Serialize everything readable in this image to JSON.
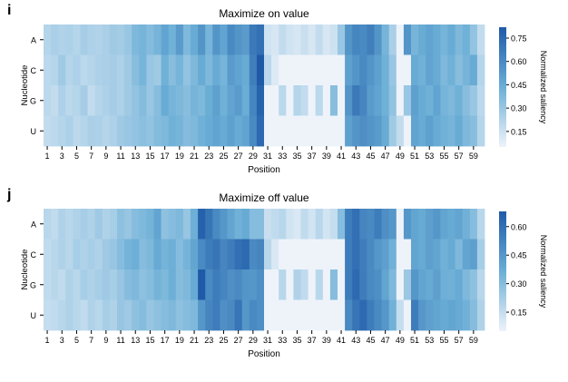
{
  "colors": {
    "low": "#eef3fa",
    "high": "#1f5aa8"
  },
  "chart_data": [
    {
      "panel": "i",
      "type": "heatmap",
      "title": "Maximize on value",
      "xlabel": "Position",
      "ylabel": "Nucleotide",
      "rows": [
        "A",
        "C",
        "G",
        "U"
      ],
      "x_tick_labels": [
        "1",
        "3",
        "5",
        "7",
        "9",
        "11",
        "13",
        "15",
        "17",
        "19",
        "21",
        "23",
        "25",
        "27",
        "29",
        "31",
        "33",
        "35",
        "37",
        "39",
        "41",
        "43",
        "45",
        "47",
        "49",
        "51",
        "53",
        "55",
        "57",
        "59"
      ],
      "colorbar": {
        "label": "Normalized saliency",
        "ticks": [
          "0.15",
          "0.30",
          "0.45",
          "0.60",
          "0.75"
        ],
        "tick_values": [
          0.15,
          0.3,
          0.45,
          0.6,
          0.75
        ],
        "range": [
          0.05,
          0.82
        ]
      },
      "values": [
        [
          0.22,
          0.25,
          0.23,
          0.24,
          0.22,
          0.26,
          0.24,
          0.23,
          0.25,
          0.28,
          0.27,
          0.3,
          0.38,
          0.4,
          0.36,
          0.4,
          0.48,
          0.42,
          0.52,
          0.38,
          0.45,
          0.55,
          0.4,
          0.55,
          0.48,
          0.6,
          0.55,
          0.52,
          0.68,
          0.72,
          0.14,
          0.12,
          0.18,
          0.14,
          0.12,
          0.16,
          0.12,
          0.18,
          0.12,
          0.15,
          0.3,
          0.55,
          0.62,
          0.6,
          0.65,
          0.55,
          0.4,
          0.25,
          0.02,
          0.55,
          0.4,
          0.45,
          0.48,
          0.45,
          0.4,
          0.45,
          0.38,
          0.42,
          0.32,
          0.18
        ],
        [
          0.2,
          0.22,
          0.28,
          0.22,
          0.24,
          0.2,
          0.22,
          0.24,
          0.25,
          0.26,
          0.24,
          0.28,
          0.35,
          0.4,
          0.3,
          0.28,
          0.42,
          0.35,
          0.4,
          0.32,
          0.38,
          0.45,
          0.38,
          0.45,
          0.4,
          0.52,
          0.48,
          0.45,
          0.65,
          0.82,
          0.2,
          0.1,
          0.02,
          0.02,
          0.02,
          0.02,
          0.02,
          0.02,
          0.02,
          0.02,
          0.02,
          0.5,
          0.55,
          0.6,
          0.55,
          0.5,
          0.42,
          0.3,
          0.02,
          0.02,
          0.45,
          0.42,
          0.48,
          0.45,
          0.38,
          0.42,
          0.35,
          0.4,
          0.45,
          0.22
        ],
        [
          0.2,
          0.18,
          0.24,
          0.2,
          0.22,
          0.26,
          0.18,
          0.22,
          0.24,
          0.26,
          0.24,
          0.28,
          0.32,
          0.36,
          0.3,
          0.35,
          0.45,
          0.4,
          0.38,
          0.35,
          0.4,
          0.38,
          0.44,
          0.5,
          0.42,
          0.48,
          0.52,
          0.44,
          0.62,
          0.78,
          0.02,
          0.02,
          0.2,
          0.02,
          0.22,
          0.18,
          0.02,
          0.2,
          0.02,
          0.35,
          0.02,
          0.55,
          0.68,
          0.62,
          0.52,
          0.48,
          0.42,
          0.32,
          0.02,
          0.3,
          0.5,
          0.45,
          0.42,
          0.48,
          0.4,
          0.38,
          0.42,
          0.35,
          0.3,
          0.2
        ],
        [
          0.18,
          0.2,
          0.22,
          0.24,
          0.2,
          0.22,
          0.25,
          0.24,
          0.22,
          0.24,
          0.28,
          0.3,
          0.32,
          0.34,
          0.32,
          0.36,
          0.38,
          0.42,
          0.4,
          0.36,
          0.38,
          0.42,
          0.45,
          0.48,
          0.45,
          0.5,
          0.45,
          0.48,
          0.6,
          0.75,
          0.02,
          0.02,
          0.02,
          0.02,
          0.02,
          0.02,
          0.02,
          0.02,
          0.02,
          0.02,
          0.02,
          0.5,
          0.55,
          0.58,
          0.55,
          0.52,
          0.45,
          0.28,
          0.18,
          0.02,
          0.48,
          0.45,
          0.5,
          0.45,
          0.42,
          0.4,
          0.45,
          0.38,
          0.35,
          0.22
        ]
      ]
    },
    {
      "panel": "j",
      "type": "heatmap",
      "title": "Maximize off value",
      "xlabel": "Position",
      "ylabel": "Nucleotide",
      "rows": [
        "A",
        "C",
        "G",
        "U"
      ],
      "x_tick_labels": [
        "1",
        "3",
        "5",
        "7",
        "9",
        "11",
        "13",
        "15",
        "17",
        "19",
        "21",
        "23",
        "25",
        "27",
        "29",
        "31",
        "33",
        "35",
        "37",
        "39",
        "41",
        "43",
        "45",
        "47",
        "49",
        "51",
        "53",
        "55",
        "57",
        "59"
      ],
      "colorbar": {
        "label": "Normalized saliency",
        "ticks": [
          "0.15",
          "0.30",
          "0.45",
          "0.60"
        ],
        "tick_values": [
          0.15,
          0.3,
          0.45,
          0.6
        ],
        "range": [
          0.05,
          0.68
        ]
      },
      "values": [
        [
          0.18,
          0.16,
          0.2,
          0.18,
          0.2,
          0.22,
          0.2,
          0.24,
          0.2,
          0.22,
          0.28,
          0.26,
          0.3,
          0.32,
          0.34,
          0.4,
          0.28,
          0.3,
          0.32,
          0.26,
          0.36,
          0.65,
          0.58,
          0.5,
          0.45,
          0.4,
          0.35,
          0.38,
          0.3,
          0.3,
          0.14,
          0.16,
          0.18,
          0.12,
          0.1,
          0.16,
          0.12,
          0.18,
          0.12,
          0.15,
          0.3,
          0.55,
          0.6,
          0.52,
          0.5,
          0.55,
          0.48,
          0.45,
          0.02,
          0.45,
          0.4,
          0.38,
          0.42,
          0.45,
          0.4,
          0.38,
          0.4,
          0.35,
          0.3,
          0.18
        ],
        [
          0.16,
          0.18,
          0.2,
          0.18,
          0.22,
          0.2,
          0.22,
          0.2,
          0.24,
          0.26,
          0.3,
          0.34,
          0.36,
          0.3,
          0.32,
          0.38,
          0.34,
          0.36,
          0.3,
          0.34,
          0.4,
          0.5,
          0.55,
          0.58,
          0.52,
          0.55,
          0.6,
          0.62,
          0.5,
          0.52,
          0.18,
          0.1,
          0.02,
          0.02,
          0.02,
          0.02,
          0.02,
          0.02,
          0.02,
          0.02,
          0.02,
          0.55,
          0.6,
          0.55,
          0.5,
          0.45,
          0.42,
          0.35,
          0.02,
          0.02,
          0.4,
          0.38,
          0.42,
          0.4,
          0.35,
          0.38,
          0.32,
          0.4,
          0.42,
          0.22
        ],
        [
          0.16,
          0.18,
          0.16,
          0.2,
          0.18,
          0.22,
          0.2,
          0.22,
          0.24,
          0.22,
          0.26,
          0.3,
          0.32,
          0.28,
          0.3,
          0.34,
          0.32,
          0.36,
          0.3,
          0.32,
          0.38,
          0.68,
          0.5,
          0.55,
          0.52,
          0.48,
          0.5,
          0.46,
          0.45,
          0.48,
          0.02,
          0.02,
          0.18,
          0.02,
          0.2,
          0.16,
          0.02,
          0.18,
          0.02,
          0.3,
          0.02,
          0.55,
          0.62,
          0.55,
          0.5,
          0.48,
          0.4,
          0.32,
          0.02,
          0.25,
          0.45,
          0.4,
          0.38,
          0.42,
          0.36,
          0.35,
          0.38,
          0.32,
          0.28,
          0.18
        ],
        [
          0.15,
          0.16,
          0.18,
          0.2,
          0.18,
          0.16,
          0.2,
          0.18,
          0.22,
          0.2,
          0.26,
          0.24,
          0.28,
          0.3,
          0.26,
          0.28,
          0.3,
          0.32,
          0.28,
          0.3,
          0.32,
          0.45,
          0.52,
          0.55,
          0.48,
          0.5,
          0.58,
          0.45,
          0.5,
          0.48,
          0.02,
          0.02,
          0.02,
          0.02,
          0.02,
          0.02,
          0.02,
          0.02,
          0.02,
          0.02,
          0.02,
          0.5,
          0.58,
          0.62,
          0.55,
          0.5,
          0.45,
          0.35,
          0.15,
          0.02,
          0.55,
          0.45,
          0.42,
          0.4,
          0.38,
          0.4,
          0.38,
          0.35,
          0.3,
          0.2
        ]
      ]
    }
  ]
}
